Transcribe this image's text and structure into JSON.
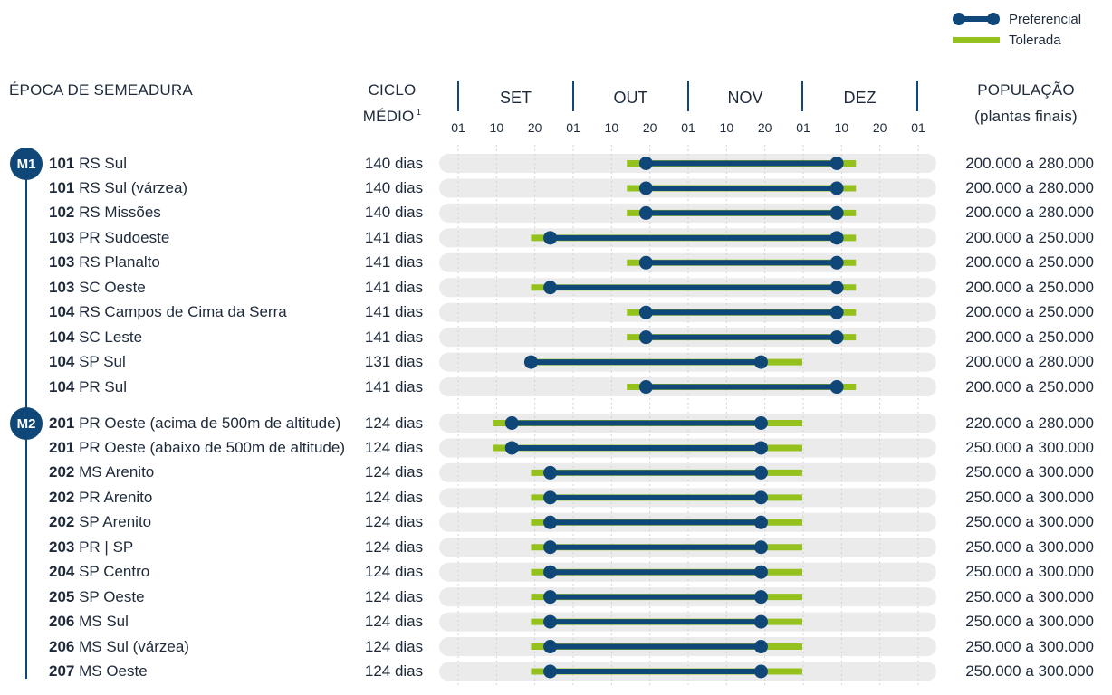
{
  "legend": {
    "preferred_label": "Preferencial",
    "tolerated_label": "Tolerada"
  },
  "headers": {
    "epoch": "ÉPOCA DE SEMEADURA",
    "cycle_line1": "CICLO",
    "cycle_line2": "MÉDIO",
    "cycle_footnote": "1",
    "population_line1": "POPULAÇÃO",
    "population_line2": "(plantas finais)"
  },
  "groups": [
    {
      "badge": "M1"
    },
    {
      "badge": "M2"
    }
  ],
  "colors": {
    "preferred": "#0e4778",
    "tolerated": "#95c11f",
    "track": "#ebebeb",
    "badge": "#0e4778"
  },
  "chart_data": {
    "type": "gantt-range",
    "months": [
      "SET",
      "OUT",
      "NOV",
      "DEZ"
    ],
    "tick_labels": [
      "01",
      "10",
      "20",
      "01",
      "10",
      "20",
      "01",
      "10",
      "20",
      "01",
      "10",
      "20",
      "01"
    ],
    "rows": [
      {
        "group": "M1",
        "code": "101",
        "name": "RS Sul",
        "cycle": "140 dias",
        "population": "200.000 a 280.000",
        "tolerated": [
          "Oct-15",
          "Dec-15"
        ],
        "preferred": [
          "Oct-20",
          "Dec-10"
        ]
      },
      {
        "group": "M1",
        "code": "101",
        "name": "RS Sul (várzea)",
        "cycle": "140 dias",
        "population": "200.000 a 280.000",
        "tolerated": [
          "Oct-15",
          "Dec-15"
        ],
        "preferred": [
          "Oct-20",
          "Dec-10"
        ]
      },
      {
        "group": "M1",
        "code": "102",
        "name": "RS Missões",
        "cycle": "140 dias",
        "population": "200.000 a 280.000",
        "tolerated": [
          "Oct-15",
          "Dec-15"
        ],
        "preferred": [
          "Oct-20",
          "Dec-10"
        ]
      },
      {
        "group": "M1",
        "code": "103",
        "name": "PR Sudoeste",
        "cycle": "141 dias",
        "population": "200.000 a 250.000",
        "tolerated": [
          "Sep-20",
          "Dec-15"
        ],
        "preferred": [
          "Sep-25",
          "Dec-10"
        ]
      },
      {
        "group": "M1",
        "code": "103",
        "name": "RS Planalto",
        "cycle": "141 dias",
        "population": "200.000 a 250.000",
        "tolerated": [
          "Oct-15",
          "Dec-15"
        ],
        "preferred": [
          "Oct-20",
          "Dec-10"
        ]
      },
      {
        "group": "M1",
        "code": "103",
        "name": "SC Oeste",
        "cycle": "141 dias",
        "population": "200.000 a 250.000",
        "tolerated": [
          "Sep-20",
          "Dec-15"
        ],
        "preferred": [
          "Sep-25",
          "Dec-10"
        ]
      },
      {
        "group": "M1",
        "code": "104",
        "name": "RS Campos de Cima da Serra",
        "cycle": "141 dias",
        "population": "200.000 a 250.000",
        "tolerated": [
          "Oct-15",
          "Dec-15"
        ],
        "preferred": [
          "Oct-20",
          "Dec-10"
        ]
      },
      {
        "group": "M1",
        "code": "104",
        "name": "SC Leste",
        "cycle": "141 dias",
        "population": "200.000 a 250.000",
        "tolerated": [
          "Oct-15",
          "Dec-15"
        ],
        "preferred": [
          "Oct-20",
          "Dec-10"
        ]
      },
      {
        "group": "M1",
        "code": "104",
        "name": "SP Sul",
        "cycle": "131 dias",
        "population": "200.000 a 280.000",
        "tolerated": [
          "Sep-20",
          "Dec-01"
        ],
        "preferred": [
          "Sep-20",
          "Nov-20"
        ]
      },
      {
        "group": "M1",
        "code": "104",
        "name": "PR Sul",
        "cycle": "141 dias",
        "population": "200.000 a 250.000",
        "tolerated": [
          "Oct-15",
          "Dec-15"
        ],
        "preferred": [
          "Oct-20",
          "Dec-10"
        ]
      },
      {
        "group": "M2",
        "code": "201",
        "name": "PR Oeste (acima de 500m de altitude)",
        "cycle": "124 dias",
        "population": "220.000 a 280.000",
        "tolerated": [
          "Sep-10",
          "Dec-01"
        ],
        "preferred": [
          "Sep-15",
          "Nov-20"
        ]
      },
      {
        "group": "M2",
        "code": "201",
        "name": "PR Oeste (abaixo de 500m de altitude)",
        "cycle": "124 dias",
        "population": "250.000 a 300.000",
        "tolerated": [
          "Sep-10",
          "Dec-01"
        ],
        "preferred": [
          "Sep-15",
          "Nov-20"
        ]
      },
      {
        "group": "M2",
        "code": "202",
        "name": "MS Arenito",
        "cycle": "124 dias",
        "population": "250.000 a 300.000",
        "tolerated": [
          "Sep-20",
          "Dec-01"
        ],
        "preferred": [
          "Sep-25",
          "Nov-20"
        ]
      },
      {
        "group": "M2",
        "code": "202",
        "name": "PR Arenito",
        "cycle": "124 dias",
        "population": "250.000 a 300.000",
        "tolerated": [
          "Sep-20",
          "Dec-01"
        ],
        "preferred": [
          "Sep-25",
          "Nov-20"
        ]
      },
      {
        "group": "M2",
        "code": "202",
        "name": "SP Arenito",
        "cycle": "124 dias",
        "population": "250.000 a 300.000",
        "tolerated": [
          "Sep-20",
          "Dec-01"
        ],
        "preferred": [
          "Sep-25",
          "Nov-20"
        ]
      },
      {
        "group": "M2",
        "code": "203",
        "name": "PR | SP",
        "cycle": "124 dias",
        "population": "250.000 a 300.000",
        "tolerated": [
          "Sep-20",
          "Dec-01"
        ],
        "preferred": [
          "Sep-25",
          "Nov-20"
        ]
      },
      {
        "group": "M2",
        "code": "204",
        "name": "SP Centro",
        "cycle": "124 dias",
        "population": "250.000 a 300.000",
        "tolerated": [
          "Sep-20",
          "Dec-01"
        ],
        "preferred": [
          "Sep-25",
          "Nov-20"
        ]
      },
      {
        "group": "M2",
        "code": "205",
        "name": "SP Oeste",
        "cycle": "124 dias",
        "population": "250.000 a 300.000",
        "tolerated": [
          "Sep-20",
          "Dec-01"
        ],
        "preferred": [
          "Sep-25",
          "Nov-20"
        ]
      },
      {
        "group": "M2",
        "code": "206",
        "name": "MS Sul",
        "cycle": "124 dias",
        "population": "250.000 a 300.000",
        "tolerated": [
          "Sep-20",
          "Dec-01"
        ],
        "preferred": [
          "Sep-25",
          "Nov-20"
        ]
      },
      {
        "group": "M2",
        "code": "206",
        "name": "MS Sul (várzea)",
        "cycle": "124 dias",
        "population": "250.000 a 300.000",
        "tolerated": [
          "Sep-20",
          "Dec-01"
        ],
        "preferred": [
          "Sep-25",
          "Nov-20"
        ]
      },
      {
        "group": "M2",
        "code": "207",
        "name": "MS Oeste",
        "cycle": "124 dias",
        "population": "250.000 a 300.000",
        "tolerated": [
          "Sep-20",
          "Dec-01"
        ],
        "preferred": [
          "Sep-25",
          "Nov-20"
        ]
      }
    ]
  }
}
